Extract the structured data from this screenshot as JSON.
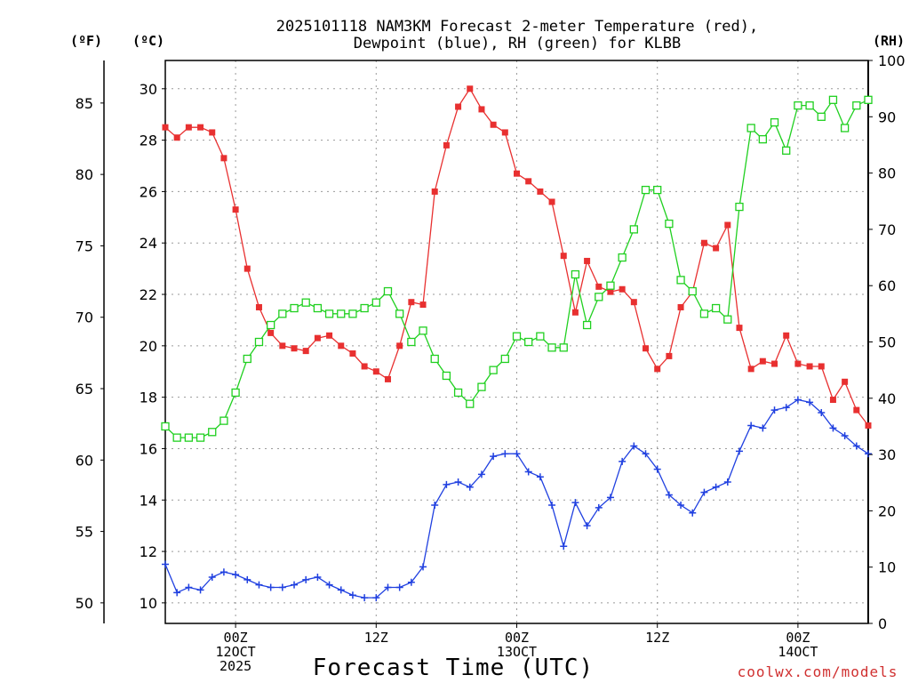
{
  "chart_data": {
    "type": "line",
    "title_line1": "2025101118 NAM3KM Forecast 2-meter Temperature (red),",
    "title_line2": "Dewpoint (blue), RH (green) for KLBB",
    "xlabel": "Forecast Time (UTC)",
    "credit": "coolwx.com/models",
    "unit_f": "(ºF)",
    "unit_c": "(ºC)",
    "unit_rh": "(RH)",
    "x_ticks": [
      {
        "hour": 6,
        "lines": [
          "00Z",
          "12OCT",
          "2025"
        ]
      },
      {
        "hour": 18,
        "lines": [
          "12Z"
        ]
      },
      {
        "hour": 30,
        "lines": [
          "00Z",
          "13OCT"
        ]
      },
      {
        "hour": 42,
        "lines": [
          "12Z"
        ]
      },
      {
        "hour": 54,
        "lines": [
          "00Z",
          "14OCT"
        ]
      }
    ],
    "x_range_hours": [
      0,
      60
    ],
    "yc_ticks": [
      "10",
      "12",
      "14",
      "16",
      "18",
      "20",
      "22",
      "24",
      "26",
      "28",
      "30"
    ],
    "yc_range": [
      9.2,
      31.1
    ],
    "yf_ticks": [
      "50",
      "55",
      "60",
      "65",
      "70",
      "75",
      "80",
      "85"
    ],
    "yrh_ticks": [
      "0",
      "10",
      "20",
      "30",
      "40",
      "50",
      "60",
      "70",
      "80",
      "90",
      "100"
    ],
    "yrh_range": [
      0,
      100
    ],
    "series": [
      {
        "name": "2-meter Temperature",
        "units": "°C",
        "color": "#e83030",
        "marker": "filled-square",
        "values": [
          28.5,
          28.1,
          28.5,
          28.5,
          28.3,
          27.3,
          25.3,
          23.0,
          21.5,
          20.5,
          20.0,
          19.9,
          19.8,
          20.3,
          20.4,
          20.0,
          19.7,
          19.2,
          19.0,
          18.7,
          20.0,
          21.7,
          21.6,
          26.0,
          27.8,
          29.3,
          30.0,
          29.2,
          28.6,
          28.3,
          26.7,
          26.4,
          26.0,
          25.6,
          23.5,
          21.3,
          23.3,
          22.3,
          22.1,
          22.2,
          21.7,
          19.9,
          19.1,
          19.6,
          21.5,
          22.1,
          24.0,
          23.8,
          24.7,
          20.7,
          19.1,
          19.4,
          19.3,
          20.4,
          19.3,
          19.2,
          19.2,
          17.9,
          18.6,
          17.5,
          16.9
        ]
      },
      {
        "name": "Dewpoint",
        "units": "°C",
        "color": "#2040e0",
        "marker": "plus",
        "values": [
          11.5,
          10.4,
          10.6,
          10.5,
          11.0,
          11.2,
          11.1,
          10.9,
          10.7,
          10.6,
          10.6,
          10.7,
          10.9,
          11.0,
          10.7,
          10.5,
          10.3,
          10.2,
          10.2,
          10.6,
          10.6,
          10.8,
          11.4,
          13.8,
          14.6,
          14.7,
          14.5,
          15.0,
          15.7,
          15.8,
          15.8,
          15.1,
          14.9,
          13.8,
          12.2,
          13.9,
          13.0,
          13.7,
          14.1,
          15.5,
          16.1,
          15.8,
          15.2,
          14.2,
          13.8,
          13.5,
          14.3,
          14.5,
          14.7,
          15.9,
          16.9,
          16.8,
          17.5,
          17.6,
          17.9,
          17.8,
          17.4,
          16.8,
          16.5,
          16.1,
          15.8
        ]
      },
      {
        "name": "RH",
        "units": "%",
        "color": "#20d020",
        "marker": "open-square",
        "values": [
          35,
          33,
          33,
          33,
          34,
          36,
          41,
          47,
          50,
          53,
          55,
          56,
          57,
          56,
          55,
          55,
          55,
          56,
          57,
          59,
          55,
          50,
          52,
          47,
          44,
          41,
          39,
          42,
          45,
          47,
          51,
          50,
          51,
          49,
          49,
          62,
          53,
          58,
          60,
          65,
          70,
          77,
          77,
          71,
          61,
          59,
          55,
          56,
          54,
          74,
          88,
          86,
          89,
          84,
          92,
          92,
          90,
          93,
          88,
          92,
          93
        ]
      }
    ]
  }
}
